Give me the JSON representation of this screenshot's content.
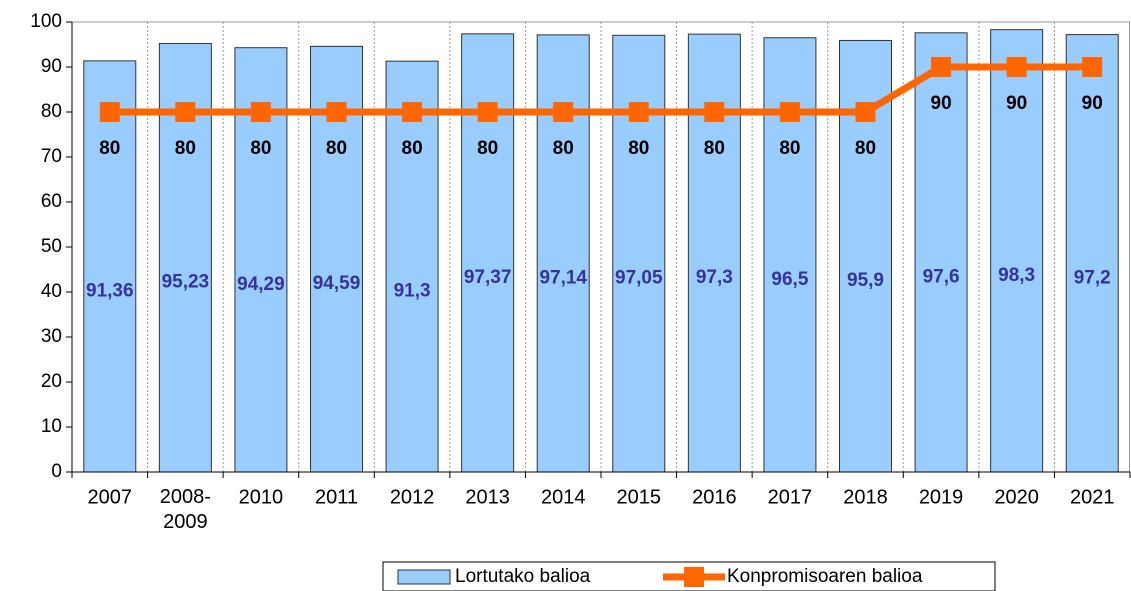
{
  "chart_data": {
    "type": "bar-line",
    "categories": [
      "2007",
      "2008-\n2009",
      "2010",
      "2011",
      "2012",
      "2013",
      "2014",
      "2015",
      "2016",
      "2017",
      "2018",
      "2019",
      "2020",
      "2021"
    ],
    "series": [
      {
        "name": "Lortutako balioa",
        "type": "bar",
        "color": "#99ccff",
        "values": [
          91.36,
          95.23,
          94.29,
          94.59,
          91.3,
          97.37,
          97.14,
          97.05,
          97.3,
          96.5,
          95.9,
          97.6,
          98.3,
          97.2
        ],
        "value_labels": [
          "91,36",
          "95,23",
          "94,29",
          "94,59",
          "91,3",
          "97,37",
          "97,14",
          "97,05",
          "97,3",
          "96,5",
          "95,9",
          "97,6",
          "98,3",
          "97,2"
        ]
      },
      {
        "name": "Konpromisoaren balioa",
        "type": "line",
        "color": "#ff6600",
        "values": [
          80,
          80,
          80,
          80,
          80,
          80,
          80,
          80,
          80,
          80,
          80,
          90,
          90,
          90
        ]
      }
    ],
    "ylim": [
      0,
      100
    ],
    "yticks": [
      0,
      10,
      20,
      30,
      40,
      50,
      60,
      70,
      80,
      90,
      100
    ],
    "legend": "bottom"
  }
}
